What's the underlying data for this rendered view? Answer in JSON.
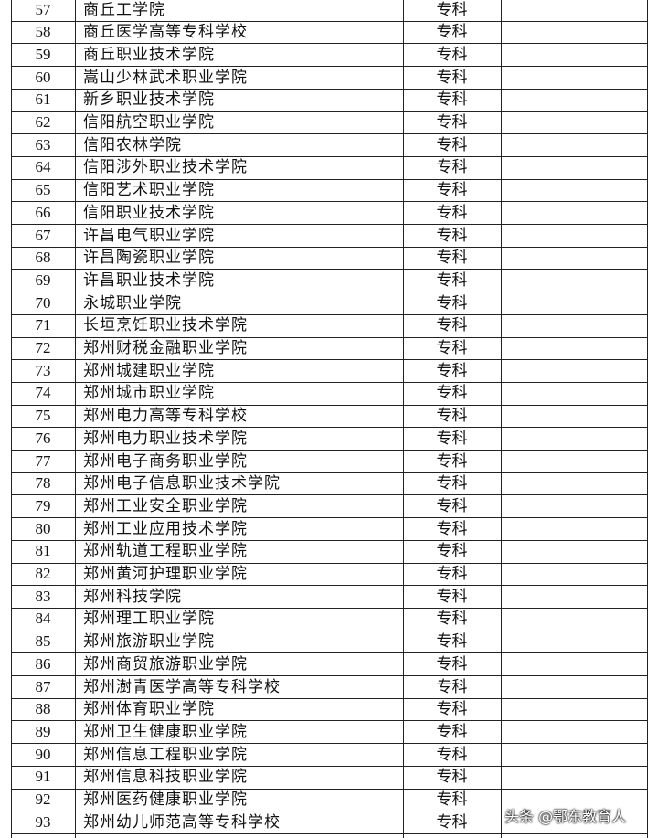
{
  "table": {
    "rows": [
      [
        "57",
        "商丘工学院",
        "专科"
      ],
      [
        "58",
        "商丘医学高等专科学校",
        "专科"
      ],
      [
        "59",
        "商丘职业技术学院",
        "专科"
      ],
      [
        "60",
        "嵩山少林武术职业学院",
        "专科"
      ],
      [
        "61",
        "新乡职业技术学院",
        "专科"
      ],
      [
        "62",
        "信阳航空职业学院",
        "专科"
      ],
      [
        "63",
        "信阳农林学院",
        "专科"
      ],
      [
        "64",
        "信阳涉外职业技术学院",
        "专科"
      ],
      [
        "65",
        "信阳艺术职业学院",
        "专科"
      ],
      [
        "66",
        "信阳职业技术学院",
        "专科"
      ],
      [
        "67",
        "许昌电气职业学院",
        "专科"
      ],
      [
        "68",
        "许昌陶瓷职业学院",
        "专科"
      ],
      [
        "69",
        "许昌职业技术学院",
        "专科"
      ],
      [
        "70",
        "永城职业学院",
        "专科"
      ],
      [
        "71",
        "长垣烹饪职业技术学院",
        "专科"
      ],
      [
        "72",
        "郑州财税金融职业学院",
        "专科"
      ],
      [
        "73",
        "郑州城建职业学院",
        "专科"
      ],
      [
        "74",
        "郑州城市职业学院",
        "专科"
      ],
      [
        "75",
        "郑州电力高等专科学校",
        "专科"
      ],
      [
        "76",
        "郑州电力职业技术学院",
        "专科"
      ],
      [
        "77",
        "郑州电子商务职业学院",
        "专科"
      ],
      [
        "78",
        "郑州电子信息职业技术学院",
        "专科"
      ],
      [
        "79",
        "郑州工业安全职业学院",
        "专科"
      ],
      [
        "80",
        "郑州工业应用技术学院",
        "专科"
      ],
      [
        "81",
        "郑州轨道工程职业学院",
        "专科"
      ],
      [
        "82",
        "郑州黄河护理职业学院",
        "专科"
      ],
      [
        "83",
        "郑州科技学院",
        "专科"
      ],
      [
        "84",
        "郑州理工职业学院",
        "专科"
      ],
      [
        "85",
        "郑州旅游职业学院",
        "专科"
      ],
      [
        "86",
        "郑州商贸旅游职业学院",
        "专科"
      ],
      [
        "87",
        "郑州澍青医学高等专科学校",
        "专科"
      ],
      [
        "88",
        "郑州体育职业学院",
        "专科"
      ],
      [
        "89",
        "郑州卫生健康职业学院",
        "专科"
      ],
      [
        "90",
        "郑州信息工程职业学院",
        "专科"
      ],
      [
        "91",
        "郑州信息科技职业学院",
        "专科"
      ],
      [
        "92",
        "郑州医药健康职业学院",
        "专科"
      ],
      [
        "93",
        "郑州幼儿师范高等专科学校",
        "专科"
      ]
    ]
  },
  "watermark": "头条 @鄂东教育人"
}
